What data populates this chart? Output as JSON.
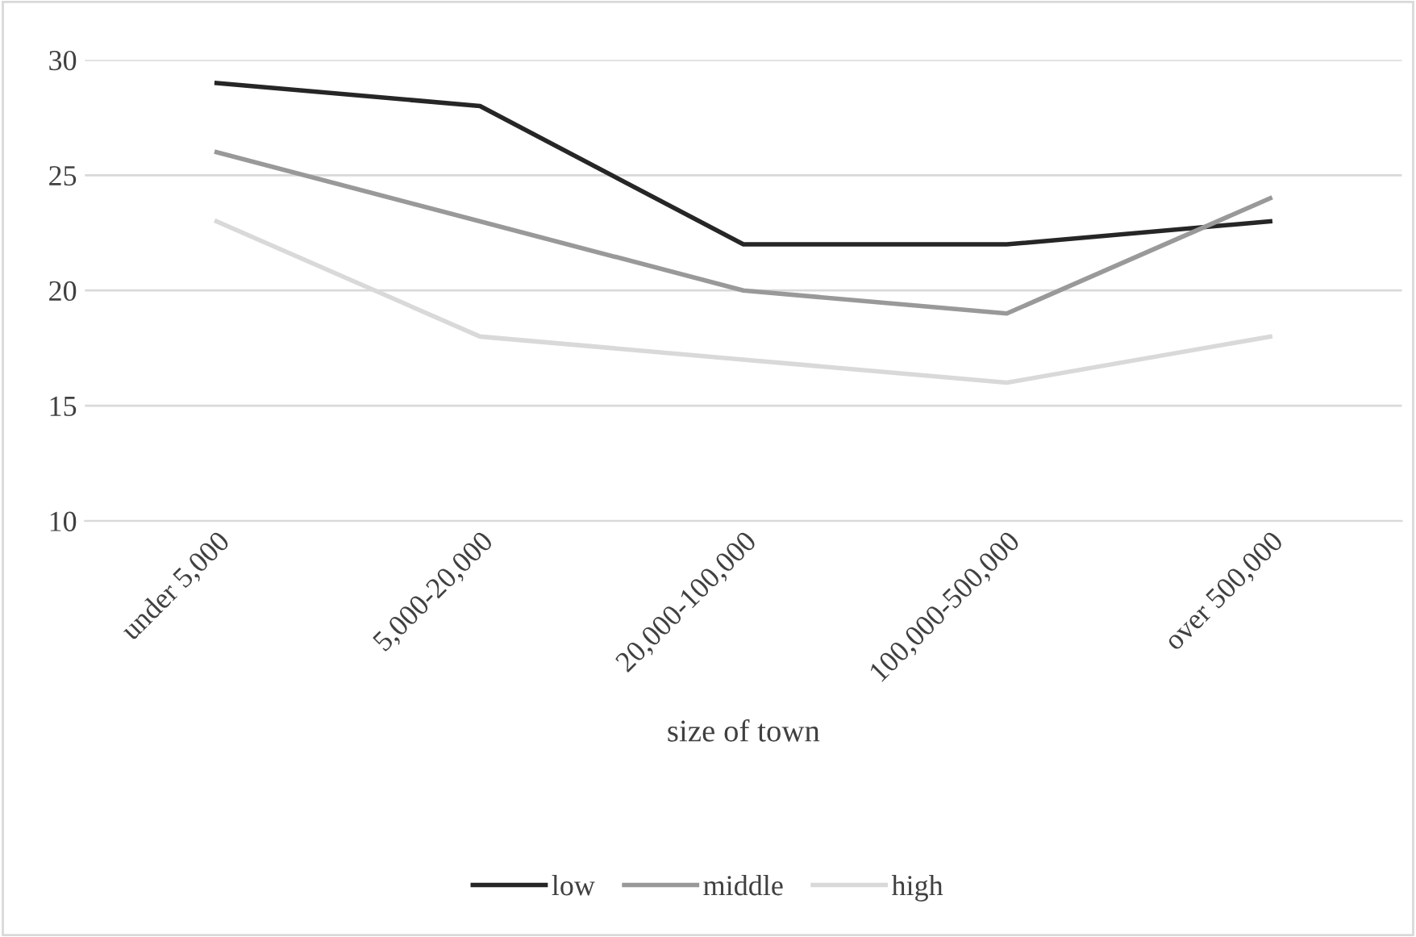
{
  "chart_data": {
    "type": "line",
    "xlabel": "size of town",
    "categories": [
      "under 5,000",
      "5,000-20,000",
      "20,000-100,000",
      "100,000-500,000",
      "over 500,000"
    ],
    "series": [
      {
        "name": "low",
        "color": "#262626",
        "values": [
          29,
          28,
          22,
          22,
          23
        ]
      },
      {
        "name": "middle",
        "color": "#999999",
        "values": [
          26,
          23,
          20,
          19,
          24
        ]
      },
      {
        "name": "high",
        "color": "#d9d9d9",
        "values": [
          23,
          18,
          17,
          16,
          18
        ]
      }
    ],
    "ylim": [
      10,
      30
    ],
    "yticks": [
      10,
      15,
      20,
      25,
      30
    ],
    "grid": "y",
    "legend": "bottom",
    "marker": "none",
    "line_style": "solid"
  }
}
